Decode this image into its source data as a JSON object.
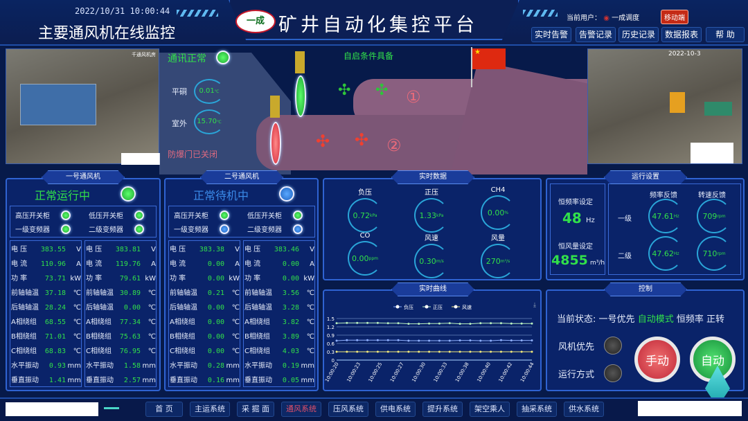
{
  "header": {
    "datetime": "2022/10/31 10:00:44",
    "page_title": "主要通风机在线监控",
    "logo_text": "一成",
    "main_title": "矿井自动化集控平台",
    "user_label": "当前用户：",
    "user_name": "一成调度",
    "mobile_label": "移动端",
    "buttons": [
      "实时告警",
      "告警记录",
      "历史记录",
      "数据报表",
      "帮 助"
    ]
  },
  "cameras": {
    "left_caption": "千通风机房",
    "right_caption": "2022-10-3"
  },
  "scene": {
    "comm_label": "通讯正常",
    "comm_status": "green",
    "autostart_label": "自启条件具备",
    "pingdong_label": "平硐",
    "pingdong_value": "0.01",
    "pingdong_unit": "℃",
    "outdoor_label": "室外",
    "outdoor_value": "15.70",
    "outdoor_unit": "℃",
    "door_label": "防爆门已关闭",
    "fan1_mark": "①",
    "fan2_mark": "②"
  },
  "fans": [
    {
      "title": "一号通风机",
      "status": "正常运行中",
      "status_color": "green",
      "indicators": [
        {
          "label": "高压开关柜",
          "color": "green"
        },
        {
          "label": "低压开关柜",
          "color": "green"
        },
        {
          "label": "一级变频器",
          "color": "green"
        },
        {
          "label": "二级变频器",
          "color": "green"
        }
      ],
      "columns": [
        [
          [
            "电 压",
            "383.55",
            "V"
          ],
          [
            "电 流",
            "110.96",
            "A"
          ],
          [
            "功 率",
            "73.71",
            "kW"
          ],
          [
            "前轴轴温",
            "37.18",
            "℃"
          ],
          [
            "后轴轴温",
            "28.24",
            "℃"
          ],
          [
            "A相绕组",
            "68.55",
            "℃"
          ],
          [
            "B相绕组",
            "71.01",
            "℃"
          ],
          [
            "C相绕组",
            "68.83",
            "℃"
          ],
          [
            "水平振动",
            "0.93",
            "mm"
          ],
          [
            "垂直振动",
            "1.41",
            "mm"
          ]
        ],
        [
          [
            "电 压",
            "383.81",
            "V"
          ],
          [
            "电 流",
            "119.76",
            "A"
          ],
          [
            "功 率",
            "79.61",
            "kW"
          ],
          [
            "前轴轴温",
            "30.89",
            "℃"
          ],
          [
            "后轴轴温",
            "0.00",
            "℃"
          ],
          [
            "A相绕组",
            "77.34",
            "℃"
          ],
          [
            "B相绕组",
            "75.63",
            "℃"
          ],
          [
            "C相绕组",
            "76.95",
            "℃"
          ],
          [
            "水平振动",
            "1.58",
            "mm"
          ],
          [
            "垂直振动",
            "2.57",
            "mm"
          ]
        ]
      ]
    },
    {
      "title": "二号通风机",
      "status": "正常待机中",
      "status_color": "blue",
      "indicators": [
        {
          "label": "高压开关柜",
          "color": "green"
        },
        {
          "label": "低压开关柜",
          "color": "green"
        },
        {
          "label": "一级变频器",
          "color": "blue"
        },
        {
          "label": "二级变频器",
          "color": "blue"
        }
      ],
      "columns": [
        [
          [
            "电 压",
            "383.38",
            "V"
          ],
          [
            "电 流",
            "0.00",
            "A"
          ],
          [
            "功 率",
            "0.00",
            "kW"
          ],
          [
            "前轴轴温",
            "0.21",
            "℃"
          ],
          [
            "后轴轴温",
            "0.00",
            "℃"
          ],
          [
            "A相绕组",
            "0.00",
            "℃"
          ],
          [
            "B相绕组",
            "0.00",
            "℃"
          ],
          [
            "C相绕组",
            "0.00",
            "℃"
          ],
          [
            "水平振动",
            "0.28",
            "mm"
          ],
          [
            "垂直振动",
            "0.16",
            "mm"
          ]
        ],
        [
          [
            "电 压",
            "383.46",
            "V"
          ],
          [
            "电 流",
            "0.00",
            "A"
          ],
          [
            "功 率",
            "0.00",
            "kW"
          ],
          [
            "前轴轴温",
            "3.56",
            "℃"
          ],
          [
            "后轴轴温",
            "3.28",
            "℃"
          ],
          [
            "A相绕组",
            "3.82",
            "℃"
          ],
          [
            "B相绕组",
            "3.89",
            "℃"
          ],
          [
            "C相绕组",
            "4.03",
            "℃"
          ],
          [
            "水平振动",
            "0.19",
            "mm"
          ],
          [
            "垂直振动",
            "0.05",
            "mm"
          ]
        ]
      ]
    }
  ],
  "realtime": {
    "title": "实时数据",
    "gauges": [
      {
        "label": "负压",
        "value": "0.72",
        "unit": "kPa"
      },
      {
        "label": "正压",
        "value": "1.33",
        "unit": "kPa"
      },
      {
        "label": "CH4",
        "value": "0.00",
        "unit": "%"
      },
      {
        "label": "CO",
        "value": "0.00",
        "unit": "ppm"
      },
      {
        "label": "风速",
        "value": "0.30",
        "unit": "m/s"
      },
      {
        "label": "风量",
        "value": "270",
        "unit": "m³/s"
      }
    ]
  },
  "settings": {
    "title": "运行设置",
    "freq_label": "恒频率设定",
    "freq_value": "48",
    "freq_unit": "Hz",
    "air_label": "恒风量设定",
    "air_value": "4855",
    "air_unit": "m³/h",
    "col1": "频率反馈",
    "col2": "转速反馈",
    "row1": "一级",
    "row2": "二级",
    "f1": "47.61",
    "f1_unit": "Hz",
    "r1": "709",
    "r1_unit": "rpm",
    "f2": "47.62",
    "f2_unit": "Hz",
    "r2": "710",
    "r2_unit": "rpm"
  },
  "control": {
    "title": "控制",
    "state_label": "当前状态:",
    "priority": "一号优先",
    "mode": "自动模式",
    "freq_mode": "恒频率",
    "direction": "正转",
    "fan_priority_label": "风机优先",
    "run_mode_label": "运行方式",
    "manual_label": "手动",
    "auto_label": "自动"
  },
  "chart_title": "实时曲线",
  "chart_data": {
    "type": "line",
    "legend_position": "top",
    "x": [
      "10:00:20",
      "10:00:21",
      "10:00:23",
      "10:00:24",
      "10:00:25",
      "10:00:26",
      "10:00:27",
      "10:00:29",
      "10:00:30",
      "10:00:31",
      "10:00:33",
      "10:00:35",
      "10:00:38",
      "10:00:39",
      "10:00:40",
      "10:00:41",
      "10:00:42",
      "10:00:43",
      "10:00:44",
      "10:00:44"
    ],
    "xticks": [
      "10:00:20",
      "10:00:23",
      "10:00:25",
      "10:00:27",
      "10:00:30",
      "10:00:33",
      "10:00:38",
      "10:00:40",
      "10:00:42",
      "10:00:44"
    ],
    "yticks": [
      "0",
      "0.3",
      "0.6",
      "0.9",
      "1.2",
      "1.5"
    ],
    "ylim": [
      0,
      1.5
    ],
    "grid": true,
    "series": [
      {
        "name": "负压",
        "color": "#8fb0ff",
        "values": [
          0.7,
          0.72,
          0.72,
          0.72,
          0.72,
          0.72,
          0.72,
          0.7,
          0.7,
          0.7,
          0.7,
          0.7,
          0.71,
          0.71,
          0.7,
          0.7,
          0.72,
          0.71,
          0.71,
          0.71
        ]
      },
      {
        "name": "正压",
        "color": "#b8f0c0",
        "values": [
          1.33,
          1.34,
          1.34,
          1.34,
          1.34,
          1.33,
          1.33,
          1.31,
          1.31,
          1.32,
          1.32,
          1.33,
          1.31,
          1.31,
          1.33,
          1.33,
          1.33,
          1.32,
          1.32,
          1.32
        ]
      },
      {
        "name": "风速",
        "color": "#f3ea7a",
        "values": [
          0.3,
          0.3,
          0.3,
          0.3,
          0.3,
          0.3,
          0.3,
          0.3,
          0.3,
          0.3,
          0.3,
          0.3,
          0.3,
          0.3,
          0.3,
          0.3,
          0.3,
          0.3,
          0.3,
          0.3
        ]
      }
    ]
  },
  "nav": {
    "items": [
      "首 页",
      "主运系统",
      "采 掘 面",
      "通风系统",
      "压风系统",
      "供电系统",
      "提升系统",
      "架空乘人",
      "抽采系统",
      "供水系统"
    ],
    "active": "通风系统",
    "active_color": "#e0506a"
  }
}
